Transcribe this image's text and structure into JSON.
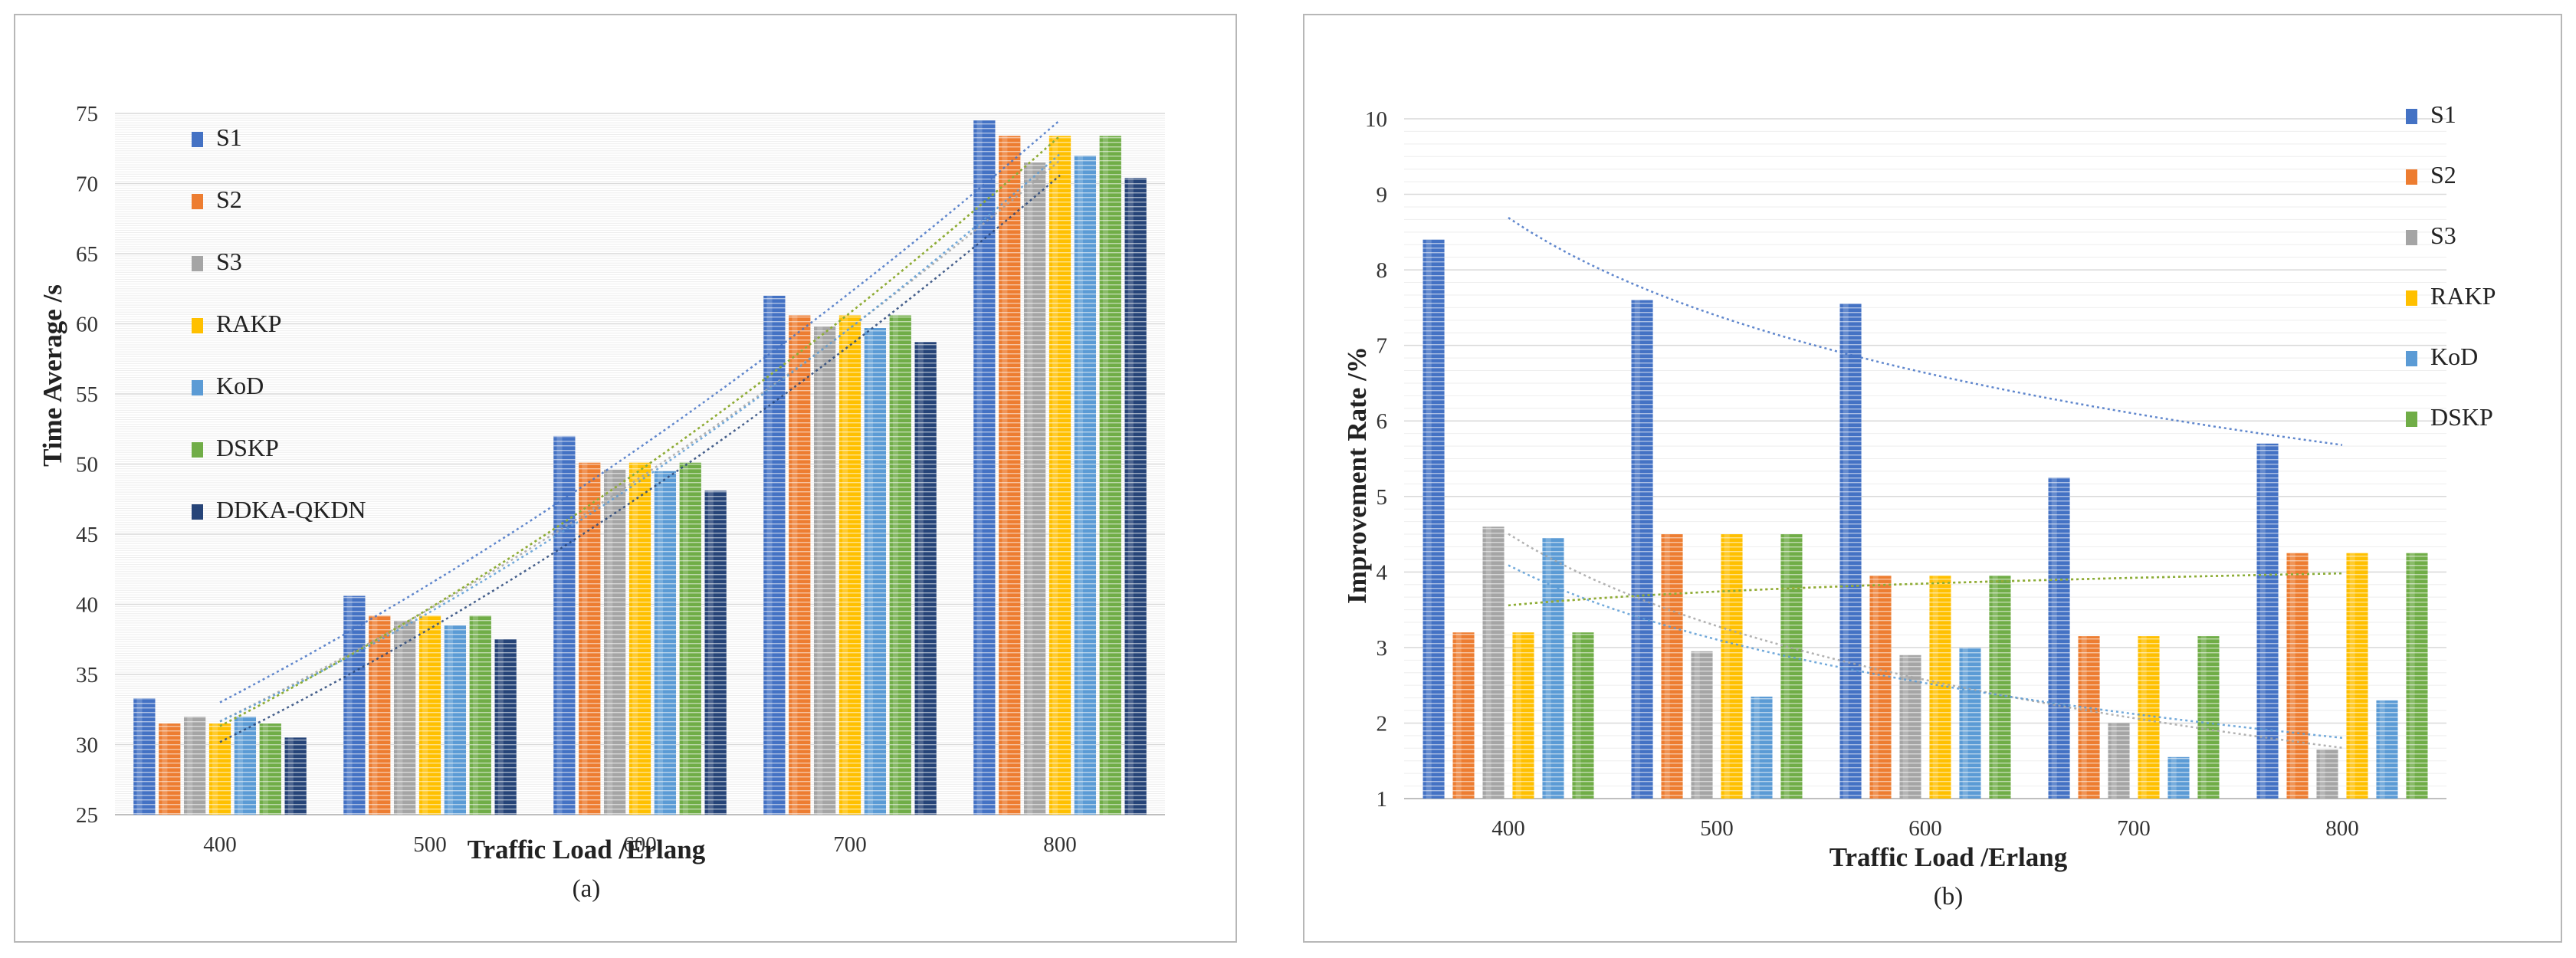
{
  "chart_data": [
    {
      "type": "bar",
      "panel_caption": "(a)",
      "title": "",
      "xlabel": "Traffic Load /Erlang",
      "ylabel": "Time Average /s",
      "categories": [
        "400",
        "500",
        "600",
        "700",
        "800"
      ],
      "ylim": [
        25,
        75
      ],
      "yticks": [
        "25",
        "30",
        "35",
        "40",
        "45",
        "50",
        "55",
        "60",
        "65",
        "70",
        "75"
      ],
      "grid": true,
      "legend_position": "top-left",
      "trendlines": true,
      "series": [
        {
          "name": "S1",
          "color": "#4472C4",
          "values": [
            33.3,
            40.6,
            52.0,
            62.0,
            74.5
          ]
        },
        {
          "name": "S2",
          "color": "#ED7D31",
          "values": [
            31.5,
            39.2,
            50.1,
            60.6,
            73.4
          ]
        },
        {
          "name": "S3",
          "color": "#A5A5A5",
          "values": [
            32.0,
            38.8,
            49.6,
            59.8,
            71.5
          ]
        },
        {
          "name": "RAKP",
          "color": "#FFC000",
          "values": [
            31.5,
            39.2,
            50.1,
            60.6,
            73.4
          ]
        },
        {
          "name": "KoD",
          "color": "#5B9BD5",
          "values": [
            32.0,
            38.5,
            49.5,
            59.7,
            72.0
          ]
        },
        {
          "name": "DSKP",
          "color": "#70AD47",
          "values": [
            31.5,
            39.2,
            50.1,
            60.6,
            73.4
          ]
        },
        {
          "name": "DDKA-QKDN",
          "color": "#264478",
          "values": [
            30.5,
            37.5,
            48.1,
            58.7,
            70.4
          ]
        }
      ]
    },
    {
      "type": "bar",
      "panel_caption": "(b)",
      "title": "",
      "xlabel": "Traffic Load /Erlang",
      "ylabel": "Improvement Rate /%",
      "categories": [
        "400",
        "500",
        "600",
        "700",
        "800"
      ],
      "ylim": [
        1,
        10
      ],
      "yticks": [
        "1",
        "2",
        "3",
        "4",
        "5",
        "6",
        "7",
        "8",
        "9",
        "10"
      ],
      "grid": true,
      "legend_position": "top-right",
      "trendlines": true,
      "series": [
        {
          "name": "S1",
          "color": "#4472C4",
          "values": [
            8.4,
            7.6,
            7.55,
            5.25,
            5.7
          ]
        },
        {
          "name": "S2",
          "color": "#ED7D31",
          "values": [
            3.2,
            4.5,
            3.95,
            3.15,
            4.25
          ]
        },
        {
          "name": "S3",
          "color": "#A5A5A5",
          "values": [
            4.6,
            2.95,
            2.9,
            2.0,
            1.65
          ]
        },
        {
          "name": "RAKP",
          "color": "#FFC000",
          "values": [
            3.2,
            4.5,
            3.95,
            3.15,
            4.25
          ]
        },
        {
          "name": "KoD",
          "color": "#5B9BD5",
          "values": [
            4.45,
            2.35,
            3.0,
            1.55,
            2.3
          ]
        },
        {
          "name": "DSKP",
          "color": "#70AD47",
          "values": [
            3.2,
            4.5,
            3.95,
            3.15,
            4.25
          ]
        }
      ]
    }
  ]
}
